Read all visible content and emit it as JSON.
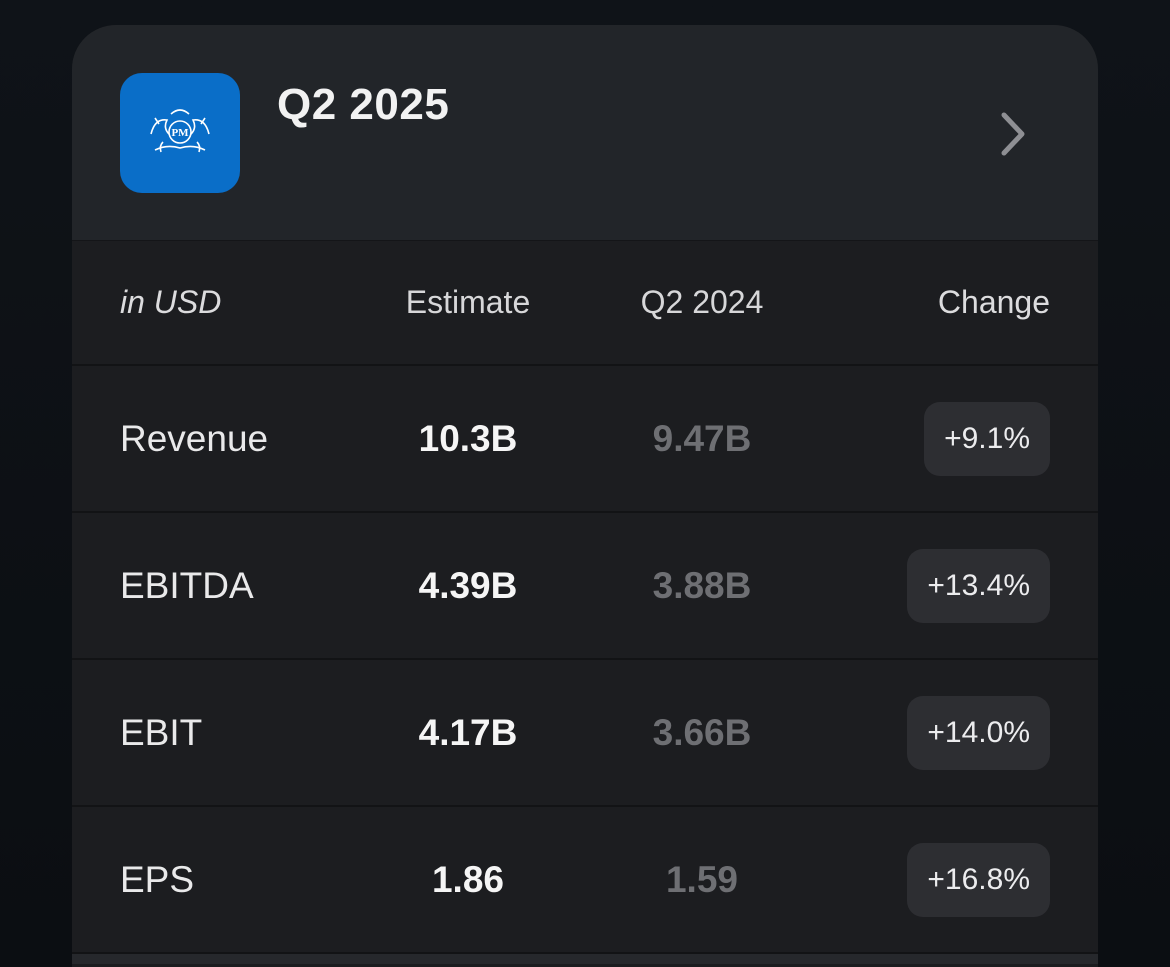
{
  "header": {
    "title": "Q2 2025",
    "logo_icon": "pm-crest-logo-icon",
    "logo_color": "#0a6ec8",
    "chevron_icon": "chevron-right-icon"
  },
  "table": {
    "columns": {
      "label": "in USD",
      "estimate": "Estimate",
      "previous": "Q2 2024",
      "change": "Change"
    },
    "rows": [
      {
        "label": "Revenue",
        "estimate": "10.3B",
        "previous": "9.47B",
        "change": "+9.1%"
      },
      {
        "label": "EBITDA",
        "estimate": "4.39B",
        "previous": "3.88B",
        "change": "+13.4%"
      },
      {
        "label": "EBIT",
        "estimate": "4.17B",
        "previous": "3.66B",
        "change": "+14.0%"
      },
      {
        "label": "EPS",
        "estimate": "1.86",
        "previous": "1.59",
        "change": "+16.8%"
      }
    ]
  }
}
